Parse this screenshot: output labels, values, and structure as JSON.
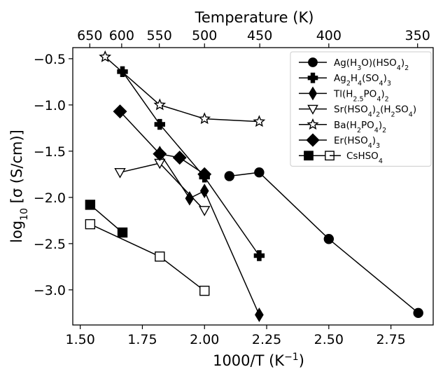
{
  "chart_data": {
    "type": "scatter",
    "xlabel": "1000/T  (K",
    "xlabel_sup": "−1",
    "xlabel_close": ")",
    "ylabel": "log",
    "ylabel_sub": "10",
    "ylabel_rest": " [σ (S/cm)]",
    "top_xlabel": "Temperature (K)",
    "xlim": [
      1.47,
      2.92
    ],
    "ylim": [
      -3.38,
      -0.38
    ],
    "xticks": [
      1.5,
      1.75,
      2.0,
      2.25,
      2.5,
      2.75
    ],
    "xtick_labels": [
      "1.50",
      "1.75",
      "2.00",
      "2.25",
      "2.50",
      "2.75"
    ],
    "yticks": [
      -0.5,
      -1.0,
      -1.5,
      -2.0,
      -2.5,
      -3.0
    ],
    "ytick_labels": [
      "−0.5",
      "−1.0",
      "−1.5",
      "−2.0",
      "−2.5",
      "−3.0"
    ],
    "top_ticks": [
      650,
      600,
      550,
      500,
      450,
      400,
      350
    ],
    "top_tick_labels": [
      "650",
      "600",
      "550",
      "500",
      "450",
      "400",
      "350"
    ],
    "grid": false,
    "legend_position": "top-right",
    "series": [
      {
        "name": "Ag(H3O)(HSO4)2",
        "marker": "circle",
        "filled": true,
        "x": [
          2.1,
          2.22,
          2.5,
          2.86
        ],
        "y": [
          -1.77,
          -1.73,
          -2.45,
          -3.25
        ]
      },
      {
        "name": "Ag2H4(SO4)3",
        "marker": "plus",
        "filled": true,
        "x": [
          1.67,
          1.82,
          2.0,
          2.22
        ],
        "y": [
          -0.64,
          -1.21,
          -1.78,
          -2.63
        ]
      },
      {
        "name": "Tl(H2.5PO4)2",
        "marker": "thin-diamond",
        "filled": true,
        "x": [
          1.82,
          1.94,
          2.0,
          2.22
        ],
        "y": [
          -1.52,
          -2.01,
          -1.93,
          -3.27
        ]
      },
      {
        "name": "Sr(HSO4)2(H2SO4)",
        "marker": "triangle-down",
        "filled": false,
        "x": [
          1.66,
          1.82,
          2.0
        ],
        "y": [
          -1.73,
          -1.63,
          -2.14
        ]
      },
      {
        "name": "Ba(H2PO4)2",
        "marker": "star",
        "filled": false,
        "x": [
          1.6,
          1.82,
          2.0,
          2.22
        ],
        "y": [
          -0.48,
          -1.0,
          -1.15,
          -1.18
        ]
      },
      {
        "name": "Er(HSO4)3",
        "marker": "diamond",
        "filled": true,
        "x": [
          1.66,
          1.82,
          1.9,
          2.0
        ],
        "y": [
          -1.07,
          -1.53,
          -1.57,
          -1.75
        ]
      },
      {
        "name": "CsHSO4",
        "marker": "square",
        "filled": true,
        "x": [
          1.54,
          1.67
        ],
        "y": [
          -2.08,
          -2.38
        ]
      },
      {
        "name": "CsHSO4",
        "marker": "square",
        "filled": false,
        "x": [
          1.54,
          1.82,
          2.0
        ],
        "y": [
          -2.29,
          -2.64,
          -3.01
        ]
      }
    ],
    "legend": [
      {
        "marker": "circle",
        "filled": true,
        "parts": [
          [
            "Ag(H",
            ""
          ],
          [
            "3",
            "sub"
          ],
          [
            "O)(HSO",
            ""
          ],
          [
            "4",
            "sub"
          ],
          [
            ")",
            ""
          ],
          [
            "2",
            "sub"
          ]
        ]
      },
      {
        "marker": "plus",
        "filled": true,
        "parts": [
          [
            "Ag",
            ""
          ],
          [
            "2",
            "sub"
          ],
          [
            "H",
            ""
          ],
          [
            "4",
            "sub"
          ],
          [
            "(SO",
            ""
          ],
          [
            "4",
            "sub"
          ],
          [
            ")",
            ""
          ],
          [
            "3",
            "sub"
          ]
        ]
      },
      {
        "marker": "thin-diamond",
        "filled": true,
        "parts": [
          [
            "Tl(H",
            ""
          ],
          [
            "2.5",
            "sub"
          ],
          [
            "PO",
            ""
          ],
          [
            "4",
            "sub"
          ],
          [
            ")",
            ""
          ],
          [
            "2",
            "sub"
          ]
        ]
      },
      {
        "marker": "triangle-down",
        "filled": false,
        "parts": [
          [
            "Sr(HSO",
            ""
          ],
          [
            "4",
            "sub"
          ],
          [
            ")",
            ""
          ],
          [
            "2",
            "sub"
          ],
          [
            "(H",
            ""
          ],
          [
            "2",
            "sub"
          ],
          [
            "SO",
            ""
          ],
          [
            "4",
            "sub"
          ],
          [
            ")",
            ""
          ]
        ]
      },
      {
        "marker": "star",
        "filled": false,
        "parts": [
          [
            "Ba(H",
            ""
          ],
          [
            "2",
            "sub"
          ],
          [
            "PO",
            ""
          ],
          [
            "4",
            "sub"
          ],
          [
            ")",
            ""
          ],
          [
            "2",
            "sub"
          ]
        ]
      },
      {
        "marker": "diamond",
        "filled": true,
        "parts": [
          [
            "Er(HSO",
            ""
          ],
          [
            "4",
            "sub"
          ],
          [
            ")",
            ""
          ],
          [
            "3",
            "sub"
          ]
        ]
      },
      {
        "marker": "square-pair",
        "filled": true,
        "parts": [
          [
            "CsHSO",
            ""
          ],
          [
            "4",
            "sub"
          ]
        ]
      }
    ]
  }
}
